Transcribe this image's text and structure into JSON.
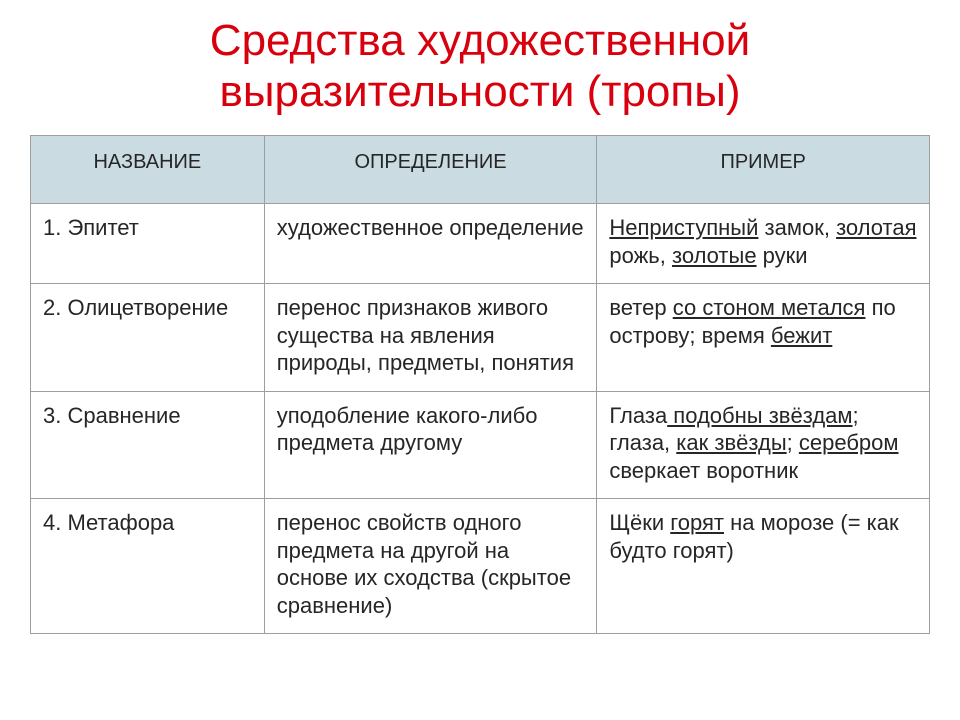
{
  "title": "Средства художественной выразительности (тропы)",
  "colors": {
    "title_color": "#d9000d",
    "header_bg": "#cadbe2",
    "border_color": "#9e9e9e",
    "text_color": "#262626",
    "background": "#ffffff"
  },
  "typography": {
    "title_fontsize": 44,
    "header_fontsize": 20,
    "cell_fontsize": 22,
    "font_family": "Arial"
  },
  "table": {
    "type": "table",
    "column_widths_pct": [
      26,
      37,
      37
    ],
    "columns": [
      "НАЗВАНИЕ",
      "ОПРЕДЕЛЕНИЕ",
      "ПРИМЕР"
    ],
    "rows": [
      {
        "name": "1. Эпитет",
        "definition": "художественное определение",
        "example_segments": [
          {
            "t": "Неприступный",
            "u": true
          },
          {
            "t": " замок, "
          },
          {
            "t": "золотая",
            "u": true
          },
          {
            "t": " рожь, "
          },
          {
            "t": "золотые",
            "u": true
          },
          {
            "t": " руки"
          }
        ]
      },
      {
        "name": "2. Олицетворение",
        "definition": "перенос признаков живого существа на явления природы, предметы, понятия",
        "example_segments": [
          {
            "t": "ветер "
          },
          {
            "t": "со стоном метался",
            "u": true
          },
          {
            "t": " по острову; время "
          },
          {
            "t": "бежит",
            "u": true
          }
        ]
      },
      {
        "name": "3. Сравнение",
        "definition": "уподобление какого-либо предмета другому",
        "example_segments": [
          {
            "t": "Глаза"
          },
          {
            "t": " подобны звёздам",
            "u": true
          },
          {
            "t": "; глаза, "
          },
          {
            "t": "как звёзды",
            "u": true
          },
          {
            "t": "; "
          },
          {
            "t": "серебром",
            "u": true
          },
          {
            "t": " сверкает воротник"
          }
        ]
      },
      {
        "name": "4. Метафора",
        "definition": "перенос свойств одного предмета на другой на основе их сходства (скрытое сравнение)",
        "example_segments": [
          {
            "t": "Щёки "
          },
          {
            "t": "горят",
            "u": true
          },
          {
            "t": " на морозе (= как будто горят)"
          }
        ]
      }
    ]
  }
}
